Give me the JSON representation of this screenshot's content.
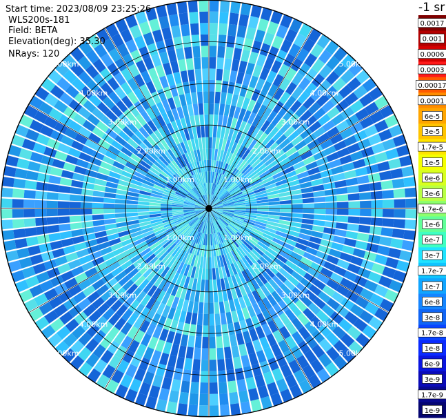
{
  "info": {
    "start_time": "Start time: 2023/08/09 23:25:26",
    "device": "WLS200s-181",
    "field": "Field: BETA",
    "elevation": "Elevation(deg): 35.30",
    "nrays": "NRays: 120"
  },
  "chart_data": {
    "type": "heatmap",
    "projection": "polar",
    "field": "BETA",
    "elevation_deg": 35.3,
    "nrays": 120,
    "range_rings_km": [
      1,
      2,
      3,
      4,
      5
    ],
    "range_labels": [
      "1.00km",
      "2.00km",
      "3.00km",
      "4.00km",
      "5.00km"
    ],
    "spokes_deg": [
      0,
      30,
      60,
      90,
      120,
      150,
      180,
      210,
      240,
      270,
      300,
      330
    ],
    "max_range_km": 5.0,
    "colorbar": {
      "unit_label": "-1 sr",
      "ticks": [
        "0.0017",
        "0.001",
        "0.0006",
        "0.0003",
        "0.00017",
        "0.0001",
        "6e-5",
        "3e-5",
        "1.7e-5",
        "1e-5",
        "6e-6",
        "3e-6",
        "1.7e-6",
        "1e-6",
        "6e-7",
        "3e-7",
        "1.7e-7",
        "1e-7",
        "6e-8",
        "3e-8",
        "1.7e-8",
        "1e-8",
        "6e-9",
        "3e-9",
        "1.7e-9",
        "1e-9"
      ],
      "colors": [
        "#7f0000",
        "#b30000",
        "#d40000",
        "#ff1a1a",
        "#ff5a00",
        "#ff8c00",
        "#ffa500",
        "#ffc400",
        "#ffe400",
        "#f4ff00",
        "#d8ff20",
        "#b8ff44",
        "#8dff6d",
        "#60ff98",
        "#3fffc2",
        "#1fe3ff",
        "#10c5ff",
        "#10a5ff",
        "#1585ff",
        "#1065f5",
        "#0a45ff",
        "#0a2aff",
        "#0a15e0",
        "#0a0ab8",
        "#080890",
        "#050570"
      ]
    },
    "typical_level": "1e-7"
  }
}
